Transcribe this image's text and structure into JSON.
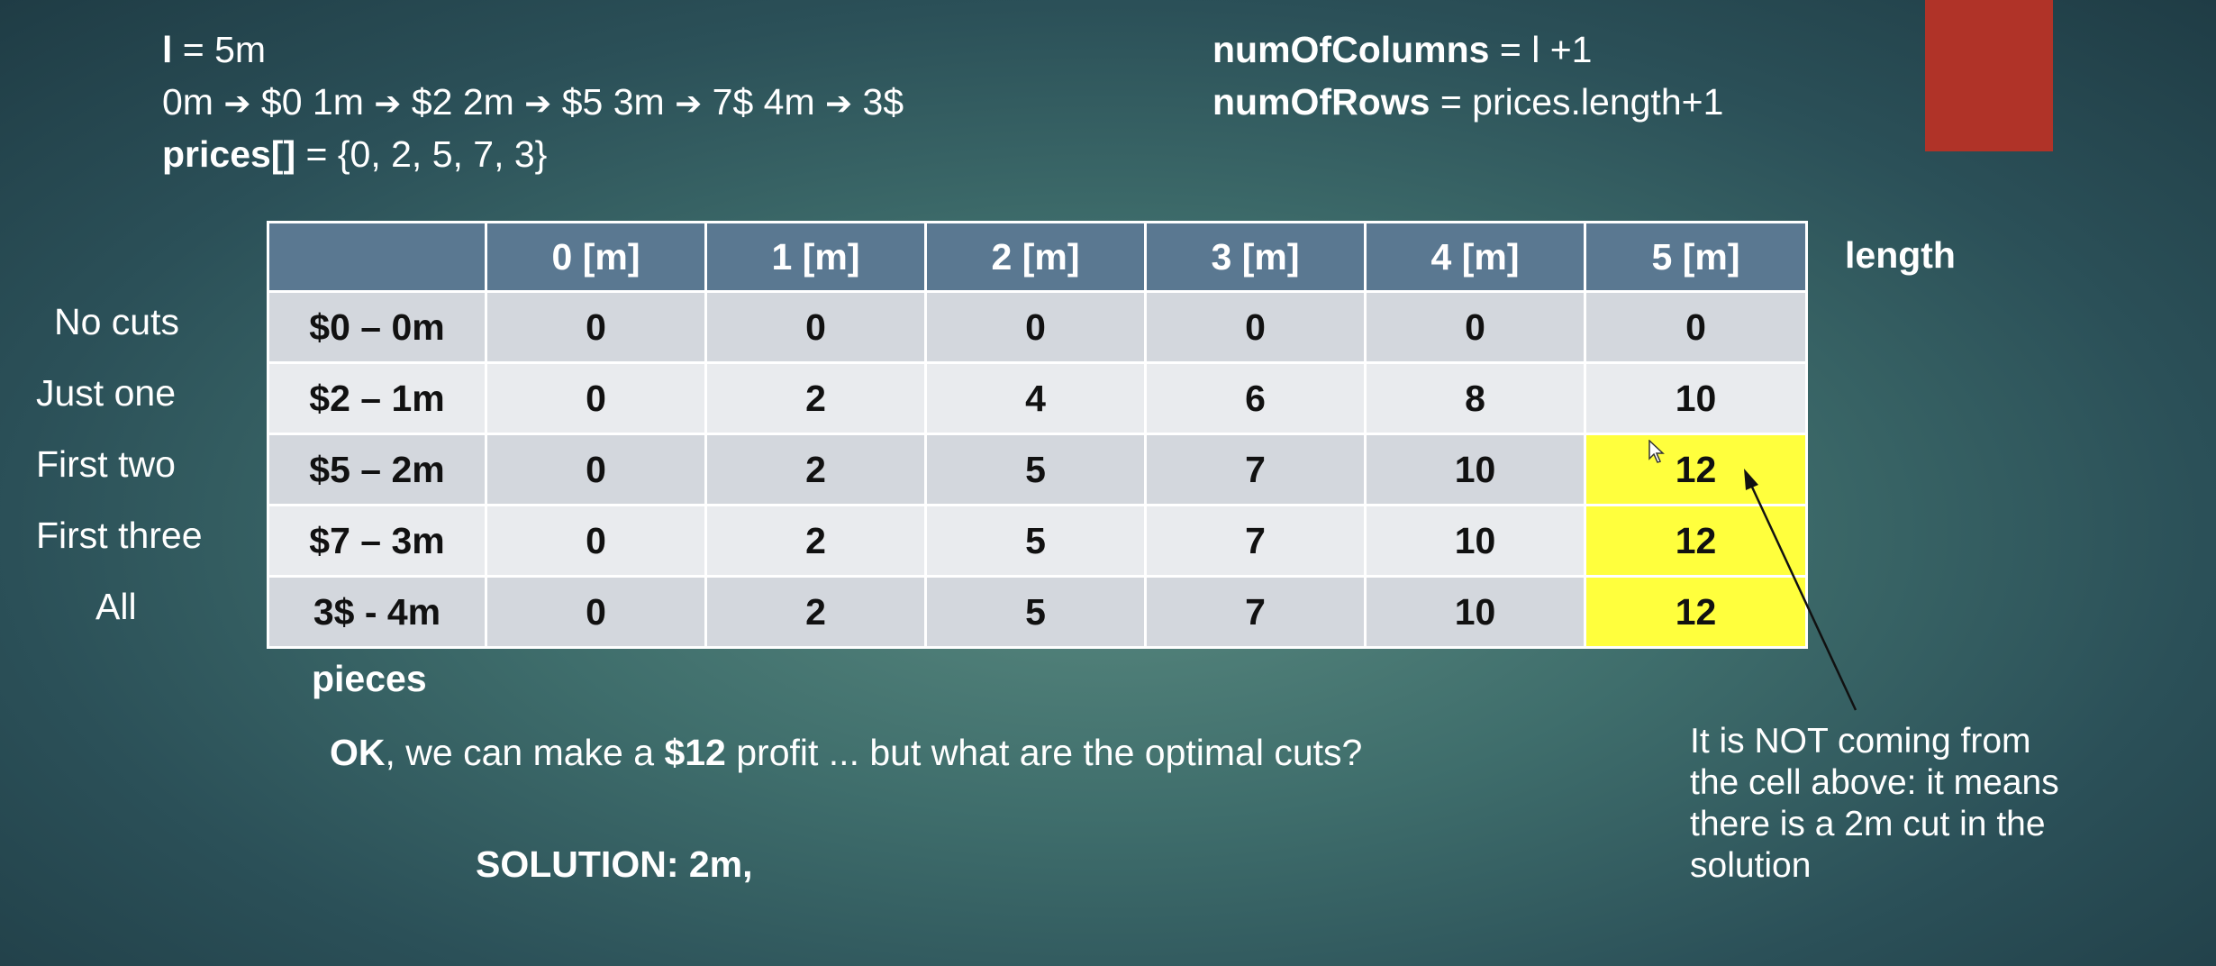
{
  "top_left": {
    "l_label": "l",
    "l_value": " = 5m",
    "mapping_segments": [
      "0m ",
      "➔",
      " $0 1m ",
      "➔",
      " $2  2m ",
      "➔",
      " $5  3m ",
      "➔",
      " 7$  4m ",
      "➔",
      " 3$"
    ],
    "prices_label": "prices[]",
    "prices_value": " = {0, 2, 5, 7, 3}"
  },
  "top_right": {
    "cols_label": "numOfColumns",
    "cols_value": " = l +1",
    "rows_label": "numOfRows",
    "rows_value": " = prices.length+1"
  },
  "colors": {
    "highlight": "#ffff3d",
    "header": "#5a7891",
    "red_box": "#b03328"
  },
  "table": {
    "headers": [
      "",
      "0 [m]",
      "1 [m]",
      "2 [m]",
      "3 [m]",
      "4 [m]",
      "5 [m]"
    ],
    "axis_label_length": "length",
    "axis_label_pieces": "pieces",
    "row_labels": [
      "No cuts",
      "Just one",
      "First two",
      "First three",
      "All"
    ],
    "rows": [
      [
        "$0 – 0m",
        "0",
        "0",
        "0",
        "0",
        "0",
        "0"
      ],
      [
        "$2 – 1m",
        "0",
        "2",
        "4",
        "6",
        "8",
        "10"
      ],
      [
        "$5 – 2m",
        "0",
        "2",
        "5",
        "7",
        "10",
        "12"
      ],
      [
        "$7 – 3m",
        "0",
        "2",
        "5",
        "7",
        "10",
        "12"
      ],
      [
        "3$ - 4m",
        "0",
        "2",
        "5",
        "7",
        "10",
        "12"
      ]
    ]
  },
  "question": {
    "ok": "OK",
    "part1": ", we can make a ",
    "amount": "$12",
    "part2": " profit ... but what are the optimal cuts?"
  },
  "solution": "SOLUTION: 2m,",
  "annotation": [
    "It is NOT coming from",
    "the cell above: it means",
    "there is a 2m cut in the",
    "solution"
  ]
}
